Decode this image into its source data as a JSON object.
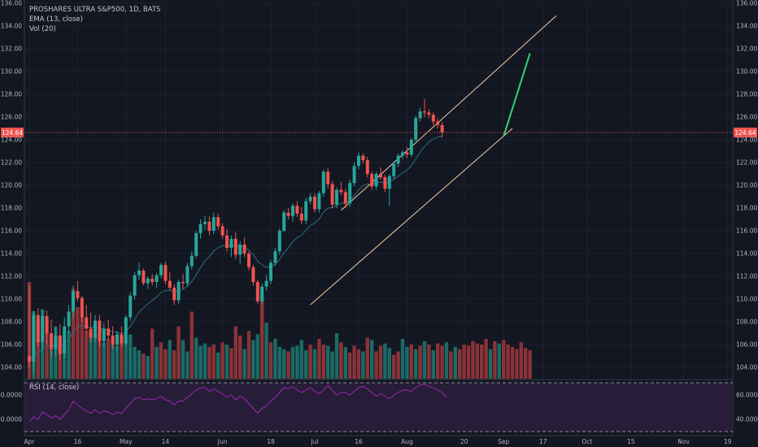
{
  "legend": {
    "symbol": "PROSHARES ULTRA S&P500, 1D, BATS",
    "ema": "EMA (13, close)",
    "vol": "Vol (20)"
  },
  "rsi_legend": "RSI (14, close)",
  "last_price_label": "124.64",
  "colors": {
    "background": "#131722",
    "up": "#26a69a",
    "down": "#ef5350",
    "ema": "#2a6f83",
    "channel": "#f5cba7",
    "projection": "#2ed573",
    "rsi_line": "#9c27b0",
    "rsi_fill": "#2b1e3d",
    "price_line": "#ef5350"
  },
  "chart_data": [
    {
      "type": "candlestick",
      "title": "PROSHARES ULTRA S&P500, 1D, BATS",
      "ylim": [
        103,
        136
      ],
      "y_ticks": [
        104,
        106,
        108,
        110,
        112,
        114,
        116,
        118,
        120,
        122,
        124,
        126,
        128,
        130,
        132,
        134,
        136
      ],
      "y_tick_labels": [
        "104.00",
        "106.00",
        "108.00",
        "110.00",
        "112.00",
        "114.00",
        "116.00",
        "118.00",
        "120.00",
        "122.00",
        "124.00",
        "126.00",
        "128.00",
        "130.00",
        "132.00",
        "134.00",
        "136.00"
      ],
      "x_tick_labels": [
        {
          "label": "Apr",
          "index": 0
        },
        {
          "label": "16",
          "index": 11
        },
        {
          "label": "May",
          "index": 22
        },
        {
          "label": "14",
          "index": 31
        },
        {
          "label": "Jun",
          "index": 44
        },
        {
          "label": "18",
          "index": 55
        },
        {
          "label": "Jul",
          "index": 65
        },
        {
          "label": "16",
          "index": 75
        },
        {
          "label": "Aug",
          "index": 86
        },
        {
          "label": "20",
          "index": 99
        },
        {
          "label": "Sep",
          "index": 108
        },
        {
          "label": "17",
          "index": 117
        },
        {
          "label": "Oct",
          "index": 127
        },
        {
          "label": "15",
          "index": 137
        },
        {
          "label": "Nov",
          "index": 149
        },
        {
          "label": "19",
          "index": 159
        }
      ],
      "last_price": 124.64,
      "candles": [
        [
          105.0,
          111.2,
          104.0,
          104.5
        ],
        [
          104.5,
          109.0,
          103.5,
          108.6
        ],
        [
          108.6,
          109.2,
          105.8,
          106.2
        ],
        [
          106.2,
          109.0,
          105.5,
          108.5
        ],
        [
          108.5,
          109.0,
          106.0,
          107.0
        ],
        [
          107.0,
          108.2,
          104.8,
          105.6
        ],
        [
          105.6,
          107.5,
          105.0,
          106.8
        ],
        [
          106.8,
          107.8,
          104.6,
          105.2
        ],
        [
          105.2,
          108.4,
          104.8,
          107.6
        ],
        [
          107.6,
          109.5,
          107.0,
          108.9
        ],
        [
          108.9,
          111.2,
          108.3,
          110.7
        ],
        [
          110.7,
          111.6,
          109.8,
          110.1
        ],
        [
          110.1,
          110.3,
          108.0,
          108.4
        ],
        [
          108.4,
          109.5,
          107.0,
          107.4
        ],
        [
          107.4,
          108.8,
          106.2,
          106.6
        ],
        [
          106.6,
          108.6,
          106.2,
          108.1
        ],
        [
          108.1,
          108.6,
          105.8,
          106.3
        ],
        [
          106.3,
          107.9,
          105.8,
          107.4
        ],
        [
          107.4,
          108.2,
          106.4,
          106.8
        ],
        [
          106.8,
          107.6,
          105.6,
          106.0
        ],
        [
          106.0,
          107.2,
          105.4,
          106.9
        ],
        [
          106.9,
          107.6,
          105.8,
          106.1
        ],
        [
          106.1,
          108.6,
          105.9,
          108.4
        ],
        [
          108.4,
          110.6,
          108.1,
          110.3
        ],
        [
          110.3,
          112.4,
          110.0,
          112.1
        ],
        [
          112.1,
          113.2,
          111.7,
          112.5
        ],
        [
          112.5,
          112.7,
          111.2,
          111.4
        ],
        [
          111.4,
          112.0,
          110.9,
          111.8
        ],
        [
          111.8,
          112.2,
          111.2,
          111.5
        ],
        [
          111.5,
          112.3,
          111.0,
          112.1
        ],
        [
          112.1,
          113.2,
          111.8,
          113.0
        ],
        [
          113.0,
          113.3,
          111.3,
          111.6
        ],
        [
          111.6,
          112.4,
          110.8,
          111.0
        ],
        [
          111.0,
          111.3,
          109.5,
          109.9
        ],
        [
          109.9,
          111.7,
          109.6,
          111.5
        ],
        [
          111.5,
          112.2,
          110.9,
          111.4
        ],
        [
          111.4,
          113.2,
          111.1,
          112.9
        ],
        [
          112.9,
          114.2,
          112.6,
          113.8
        ],
        [
          113.8,
          116.0,
          113.6,
          115.8
        ],
        [
          115.8,
          117.0,
          115.3,
          116.6
        ],
        [
          116.6,
          117.3,
          116.1,
          116.8
        ],
        [
          116.8,
          117.3,
          115.6,
          116.0
        ],
        [
          116.0,
          117.6,
          115.7,
          117.2
        ],
        [
          117.2,
          117.5,
          116.1,
          116.4
        ],
        [
          116.4,
          116.7,
          115.3,
          115.6
        ],
        [
          115.6,
          116.2,
          114.2,
          114.5
        ],
        [
          114.5,
          115.6,
          113.7,
          115.3
        ],
        [
          115.3,
          115.9,
          113.5,
          113.9
        ],
        [
          113.9,
          115.1,
          113.1,
          114.8
        ],
        [
          114.8,
          115.4,
          113.7,
          114.0
        ],
        [
          114.0,
          114.2,
          112.5,
          112.8
        ],
        [
          112.8,
          113.0,
          111.2,
          111.5
        ],
        [
          111.5,
          111.7,
          109.6,
          109.8
        ],
        [
          109.8,
          111.4,
          109.5,
          111.1
        ],
        [
          111.1,
          112.1,
          110.7,
          111.6
        ],
        [
          111.6,
          113.4,
          111.3,
          113.2
        ],
        [
          113.2,
          114.5,
          112.9,
          114.2
        ],
        [
          114.2,
          116.2,
          113.9,
          116.0
        ],
        [
          116.0,
          117.8,
          115.9,
          117.6
        ]
      ],
      "candles_b": [
        [
          117.6,
          118.0,
          117.0,
          117.3
        ],
        [
          117.3,
          118.4,
          116.8,
          118.2
        ],
        [
          118.2,
          118.6,
          117.2,
          117.5
        ],
        [
          117.5,
          118.1,
          116.6,
          116.9
        ],
        [
          116.9,
          118.9,
          116.6,
          118.6
        ],
        [
          118.6,
          119.3,
          118.3,
          119.0
        ],
        [
          119.0,
          119.3,
          117.6,
          117.9
        ],
        [
          117.9,
          119.5,
          117.6,
          119.3
        ],
        [
          119.3,
          121.4,
          119.0,
          121.2
        ],
        [
          121.2,
          121.5,
          119.7,
          120.1
        ],
        [
          120.1,
          120.4,
          118.0,
          118.3
        ],
        [
          118.3,
          119.8,
          118.0,
          119.6
        ],
        [
          119.6,
          120.3,
          119.1,
          119.4
        ],
        [
          119.4,
          119.7,
          118.0,
          118.4
        ],
        [
          118.4,
          120.5,
          118.1,
          120.2
        ],
        [
          120.2,
          122.0,
          119.9,
          121.7
        ],
        [
          121.7,
          122.9,
          121.4,
          122.6
        ],
        [
          122.6,
          122.8,
          121.9,
          122.2
        ],
        [
          122.2,
          122.5,
          120.7,
          121.0
        ],
        [
          121.0,
          121.2,
          119.6,
          119.9
        ],
        [
          119.9,
          121.2,
          119.6,
          121.0
        ],
        [
          121.0,
          121.6,
          120.5,
          120.7
        ],
        [
          120.7,
          120.9,
          119.4,
          119.7
        ],
        [
          119.7,
          121.0,
          118.2,
          120.8
        ],
        [
          120.8,
          122.1,
          120.5,
          121.9
        ],
        [
          121.9,
          122.8,
          121.6,
          122.6
        ],
        [
          122.6,
          123.1,
          122.3,
          122.9
        ],
        [
          122.9,
          123.4,
          122.4,
          122.7
        ],
        [
          122.7,
          124.2,
          122.5,
          124.0
        ],
        [
          124.0,
          126.1,
          123.8,
          125.9
        ],
        [
          125.9,
          126.8,
          125.6,
          126.5
        ],
        [
          126.5,
          127.6,
          126.0,
          126.4
        ],
        [
          126.4,
          126.7,
          125.9,
          126.2
        ],
        [
          126.2,
          126.4,
          125.3,
          125.6
        ],
        [
          125.6,
          125.9,
          125.0,
          125.3
        ],
        [
          125.3,
          125.6,
          124.2,
          124.64
        ]
      ],
      "volume": [
        [
          111.5,
          "down"
        ],
        [
          108.9,
          "up"
        ],
        [
          108.2,
          "down"
        ],
        [
          109.1,
          "up"
        ],
        [
          107.3,
          "down"
        ],
        [
          106.0,
          "up"
        ],
        [
          107.6,
          "up"
        ],
        [
          106.8,
          "down"
        ],
        [
          106.0,
          "up"
        ],
        [
          107.2,
          "up"
        ],
        [
          110.9,
          "down"
        ],
        [
          109.3,
          "down"
        ],
        [
          108.4,
          "down"
        ],
        [
          107.2,
          "down"
        ],
        [
          107.0,
          "up"
        ],
        [
          106.8,
          "up"
        ],
        [
          107.5,
          "down"
        ],
        [
          106.2,
          "up"
        ],
        [
          106.5,
          "down"
        ],
        [
          106.0,
          "up"
        ],
        [
          105.9,
          "up"
        ],
        [
          106.8,
          "down"
        ],
        [
          106.5,
          "up"
        ],
        [
          106.9,
          "up"
        ],
        [
          105.8,
          "up"
        ],
        [
          105.5,
          "up"
        ],
        [
          105.2,
          "down"
        ],
        [
          105.0,
          "up"
        ],
        [
          107.4,
          "down"
        ],
        [
          105.8,
          "up"
        ],
        [
          106.2,
          "down"
        ],
        [
          105.6,
          "down"
        ],
        [
          106.4,
          "up"
        ],
        [
          105.5,
          "down"
        ],
        [
          107.6,
          "down"
        ],
        [
          106.4,
          "up"
        ],
        [
          105.4,
          "up"
        ],
        [
          108.9,
          "down"
        ],
        [
          106.6,
          "up"
        ],
        [
          105.9,
          "up"
        ],
        [
          106.1,
          "up"
        ],
        [
          105.8,
          "down"
        ],
        [
          106.0,
          "down"
        ],
        [
          105.3,
          "up"
        ],
        [
          106.2,
          "down"
        ],
        [
          106.0,
          "up"
        ],
        [
          105.7,
          "down"
        ],
        [
          107.6,
          "down"
        ],
        [
          106.8,
          "down"
        ],
        [
          105.6,
          "up"
        ],
        [
          107.2,
          "down"
        ],
        [
          106.4,
          "up"
        ],
        [
          106.9,
          "up"
        ],
        [
          110.2,
          "down"
        ],
        [
          107.9,
          "up"
        ],
        [
          106.2,
          "down"
        ],
        [
          106.5,
          "up"
        ],
        [
          105.8,
          "up"
        ],
        [
          105.6,
          "up"
        ],
        [
          105.4,
          "down"
        ],
        [
          105.8,
          "up"
        ],
        [
          105.9,
          "up"
        ],
        [
          106.4,
          "up"
        ],
        [
          105.5,
          "up"
        ],
        [
          106.0,
          "down"
        ],
        [
          105.6,
          "up"
        ],
        [
          106.5,
          "down"
        ],
        [
          106.0,
          "down"
        ],
        [
          105.9,
          "up"
        ],
        [
          105.4,
          "up"
        ],
        [
          107.0,
          "up"
        ],
        [
          106.2,
          "down"
        ],
        [
          105.8,
          "up"
        ],
        [
          105.3,
          "down"
        ],
        [
          105.9,
          "down"
        ],
        [
          105.6,
          "down"
        ],
        [
          105.4,
          "up"
        ],
        [
          106.6,
          "down"
        ],
        [
          106.4,
          "up"
        ],
        [
          105.4,
          "down"
        ],
        [
          105.9,
          "down"
        ],
        [
          106.1,
          "up"
        ],
        [
          105.7,
          "up"
        ],
        [
          105.1,
          "down"
        ],
        [
          105.4,
          "down"
        ],
        [
          106.5,
          "up"
        ],
        [
          105.8,
          "up"
        ],
        [
          106.0,
          "down"
        ],
        [
          105.6,
          "up"
        ],
        [
          105.9,
          "down"
        ],
        [
          106.3,
          "up"
        ],
        [
          106.0,
          "down"
        ],
        [
          105.5,
          "up"
        ],
        [
          106.1,
          "down"
        ],
        [
          105.9,
          "down"
        ],
        [
          106.2,
          "up"
        ],
        [
          105.4,
          "down"
        ],
        [
          105.8,
          "up"
        ],
        [
          105.6,
          "down"
        ],
        [
          106.0,
          "down"
        ],
        [
          105.9,
          "down"
        ],
        [
          106.3,
          "down"
        ],
        [
          106.1,
          "down"
        ],
        [
          106.0,
          "down"
        ],
        [
          106.5,
          "down"
        ],
        [
          105.6,
          "up"
        ],
        [
          106.3,
          "down"
        ],
        [
          106.1,
          "up"
        ],
        [
          106.4,
          "down"
        ],
        [
          106.0,
          "down"
        ],
        [
          105.8,
          "down"
        ],
        [
          105.6,
          "down"
        ],
        [
          106.2,
          "down"
        ],
        [
          105.7,
          "down"
        ],
        [
          105.5,
          "down"
        ]
      ],
      "channel": {
        "upper": [
          [
            71,
            117.8
          ],
          [
            120,
            134.9
          ]
        ],
        "lower": [
          [
            64,
            109.5
          ],
          [
            110,
            125.0
          ]
        ]
      },
      "projection": [
        [
          108,
          124.3
        ],
        [
          114,
          131.6
        ]
      ]
    },
    {
      "type": "line",
      "title": "RSI (14, close)",
      "ylim": [
        28,
        72
      ],
      "y_ticks": [
        40,
        60
      ],
      "y_tick_labels": [
        "40.0000",
        "60.0000"
      ],
      "bands": [
        30,
        70
      ],
      "values": [
        38,
        42,
        40,
        46,
        44,
        41,
        43,
        40,
        44,
        48,
        55,
        52,
        49,
        47,
        45,
        48,
        45,
        47,
        46,
        44,
        46,
        45,
        49,
        53,
        57,
        58,
        56,
        57,
        56,
        57,
        59,
        56,
        55,
        52,
        55,
        55,
        58,
        61,
        64,
        66,
        66,
        63,
        65,
        63,
        61,
        58,
        60,
        56,
        59,
        57,
        53,
        49,
        45,
        49,
        51,
        55,
        58,
        62,
        66,
        65,
        67,
        64,
        62,
        64,
        66,
        63,
        61,
        64,
        68,
        64,
        60,
        62,
        62,
        60,
        63,
        66,
        67,
        65,
        62,
        59,
        61,
        59,
        57,
        60,
        62,
        64,
        64,
        63,
        66,
        68,
        69,
        67,
        66,
        64,
        62,
        58
      ]
    }
  ]
}
